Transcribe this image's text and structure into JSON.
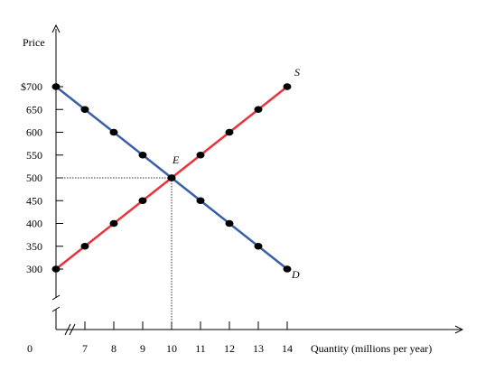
{
  "chart_data": {
    "type": "line",
    "x_axis_label": "Quantity (millions per year)",
    "y_axis_label": "Price",
    "x_tick_labels": [
      "0",
      "7",
      "8",
      "9",
      "10",
      "11",
      "12",
      "13",
      "14"
    ],
    "y_tick_labels": [
      "300",
      "350",
      "400",
      "450",
      "500",
      "550",
      "600",
      "650",
      "$700"
    ],
    "xlim": [
      6,
      14
    ],
    "ylim": [
      300,
      700
    ],
    "axis_break": true,
    "series": [
      {
        "name": "S",
        "color": "#e8333c",
        "points": [
          {
            "x": 6,
            "y": 300
          },
          {
            "x": 7,
            "y": 350
          },
          {
            "x": 8,
            "y": 400
          },
          {
            "x": 9,
            "y": 450
          },
          {
            "x": 10,
            "y": 500
          },
          {
            "x": 11,
            "y": 550
          },
          {
            "x": 12,
            "y": 600
          },
          {
            "x": 13,
            "y": 650
          },
          {
            "x": 14,
            "y": 700
          }
        ]
      },
      {
        "name": "D",
        "color": "#3a5fa8",
        "points": [
          {
            "x": 6,
            "y": 700
          },
          {
            "x": 7,
            "y": 650
          },
          {
            "x": 8,
            "y": 600
          },
          {
            "x": 9,
            "y": 550
          },
          {
            "x": 10,
            "y": 500
          },
          {
            "x": 11,
            "y": 450
          },
          {
            "x": 12,
            "y": 400
          },
          {
            "x": 13,
            "y": 350
          },
          {
            "x": 14,
            "y": 300
          }
        ]
      }
    ],
    "equilibrium": {
      "label": "E",
      "x": 10,
      "y": 500
    }
  }
}
